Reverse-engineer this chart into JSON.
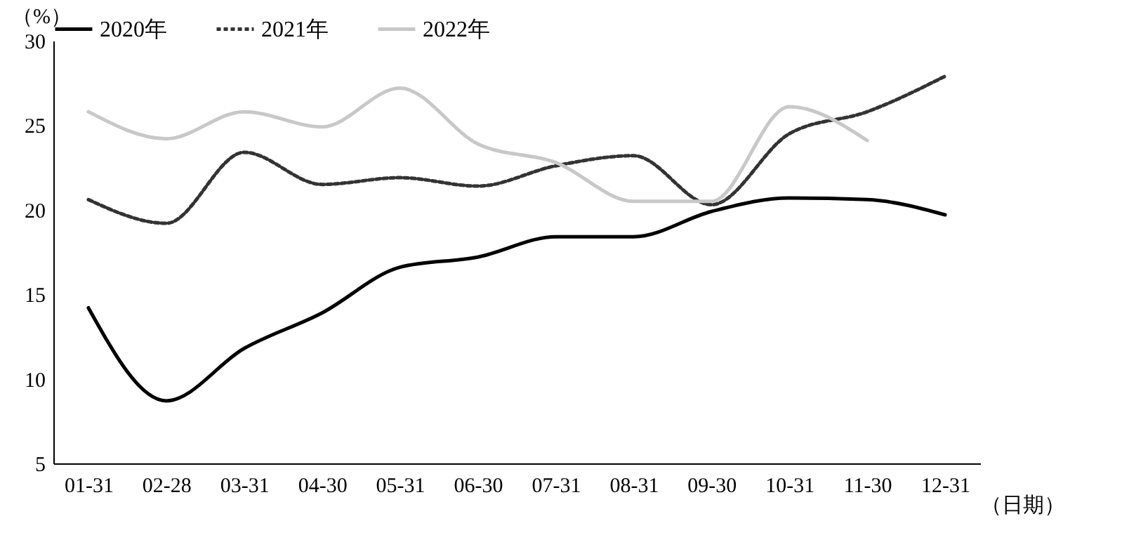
{
  "chart_data": {
    "type": "line",
    "ylabel": "（%）",
    "xlabel": "（日期）",
    "categories": [
      "01-31",
      "02-28",
      "03-31",
      "04-30",
      "05-31",
      "06-30",
      "07-31",
      "08-31",
      "09-30",
      "10-31",
      "11-30",
      "12-31"
    ],
    "series": [
      {
        "name": "2020年",
        "color": "#000000",
        "line_style": "solid",
        "values": [
          14.2,
          8.7,
          11.8,
          13.9,
          16.6,
          17.2,
          18.4,
          18.4,
          19.9,
          20.7,
          20.6,
          19.7
        ]
      },
      {
        "name": "2021年",
        "color": "#333333",
        "line_style": "dotted",
        "values": [
          20.6,
          19.2,
          23.4,
          21.5,
          21.9,
          21.4,
          22.6,
          23.2,
          20.3,
          24.5,
          25.8,
          27.9
        ]
      },
      {
        "name": "2022年",
        "color": "#c8c8c8",
        "line_style": "solid",
        "values": [
          25.8,
          24.2,
          25.8,
          24.9,
          27.2,
          23.9,
          22.8,
          20.5,
          20.5,
          26.1,
          24.1,
          null
        ]
      }
    ],
    "ylim": [
      5,
      30
    ],
    "yticks": [
      5,
      10,
      15,
      20,
      25,
      30
    ],
    "grid": false,
    "legend": "top"
  }
}
